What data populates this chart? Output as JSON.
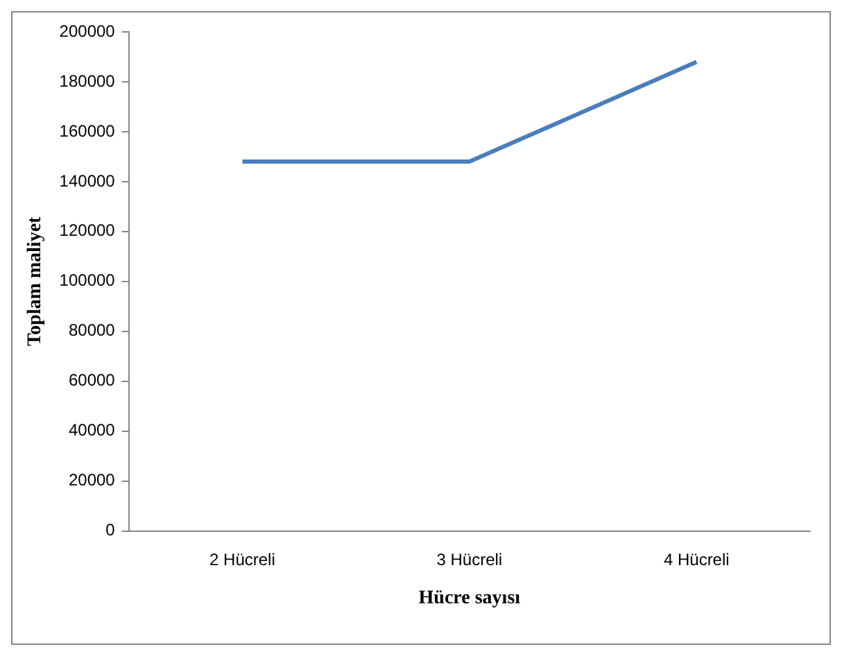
{
  "chart_data": {
    "type": "line",
    "xlabel": "Hücre sayısı",
    "ylabel": "Toplam maliyet",
    "categories": [
      "2 Hücreli",
      "3 Hücreli",
      "4 Hücreli"
    ],
    "series": [
      {
        "color": "#4a7ebb",
        "values": [
          148000,
          148000,
          188000
        ]
      }
    ],
    "ylim": [
      0,
      200000
    ],
    "yticks": [
      0,
      20000,
      40000,
      60000,
      80000,
      100000,
      120000,
      140000,
      160000,
      180000,
      200000
    ],
    "grid": false,
    "legend": false,
    "marker": "none",
    "line_style": "solid"
  }
}
